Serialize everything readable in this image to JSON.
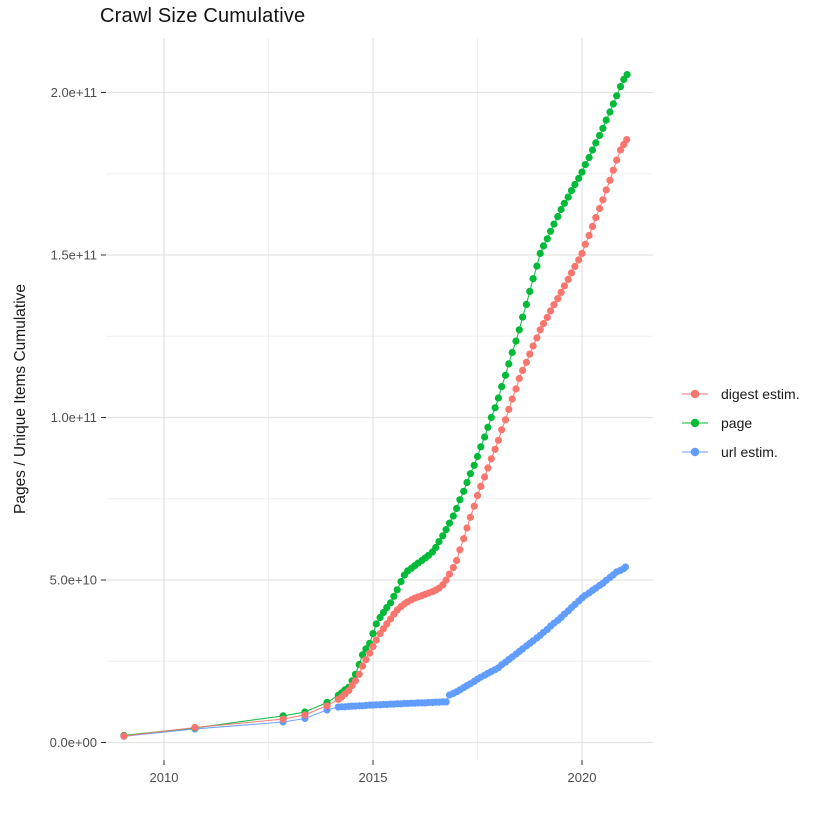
{
  "title": "Crawl Size Cumulative",
  "chart_data": {
    "type": "line",
    "title": "Crawl Size Cumulative",
    "xlabel": "",
    "ylabel": "Pages / Unique Items Cumulative",
    "background": "#FFFFFF",
    "grid": true,
    "legend_position": "right",
    "value_unit": "billions (1e9) of pages / unique items; y tick labels shown in scientific notation",
    "x_range": [
      2008.4,
      2021.7
    ],
    "y_range_billions": [
      -10,
      215
    ],
    "x_axis": {
      "ticks": [
        {
          "label": "2010",
          "value": 2010
        },
        {
          "label": "2015",
          "value": 2015
        },
        {
          "label": "2020",
          "value": 2020
        }
      ],
      "minor_gridlines": [
        2012.5,
        2017.5
      ]
    },
    "y_axis": {
      "ticks": [
        {
          "label": "0.0e+00",
          "value": 0
        },
        {
          "label": "5.0e+10",
          "value": 50
        },
        {
          "label": "1.0e+11",
          "value": 100
        },
        {
          "label": "1.5e+11",
          "value": 150
        },
        {
          "label": "2.0e+11",
          "value": 200
        }
      ],
      "minor_gridlines": [
        25,
        75,
        125,
        175
      ]
    },
    "series": [
      {
        "name": "digest estim.",
        "color": "#F8766D",
        "points": [
          [
            2009.04,
            2.0
          ],
          [
            2010.74,
            4.6
          ],
          [
            2012.85,
            7.2
          ],
          [
            2013.37,
            8.5
          ],
          [
            2013.9,
            11.3
          ],
          [
            2014.17,
            13.3
          ],
          [
            2014.25,
            14.0
          ],
          [
            2014.33,
            15.0
          ],
          [
            2014.42,
            16.0
          ],
          [
            2014.5,
            17.5
          ],
          [
            2014.58,
            19.0
          ],
          [
            2014.67,
            21.0
          ],
          [
            2014.75,
            23.5
          ],
          [
            2014.83,
            25.5
          ],
          [
            2014.92,
            27.5
          ],
          [
            2015.0,
            29.5
          ],
          [
            2015.08,
            31.5
          ],
          [
            2015.17,
            33.5
          ],
          [
            2015.25,
            35.0
          ],
          [
            2015.33,
            36.5
          ],
          [
            2015.42,
            38.0
          ],
          [
            2015.5,
            39.5
          ],
          [
            2015.58,
            40.8
          ],
          [
            2015.67,
            41.8
          ],
          [
            2015.75,
            42.6
          ],
          [
            2015.83,
            43.3
          ],
          [
            2015.92,
            43.9
          ],
          [
            2016.0,
            44.4
          ],
          [
            2016.08,
            44.8
          ],
          [
            2016.17,
            45.2
          ],
          [
            2016.25,
            45.6
          ],
          [
            2016.33,
            46.0
          ],
          [
            2016.42,
            46.4
          ],
          [
            2016.5,
            46.9
          ],
          [
            2016.58,
            47.5
          ],
          [
            2016.67,
            48.5
          ],
          [
            2016.75,
            50.0
          ],
          [
            2016.83,
            51.8
          ],
          [
            2016.92,
            53.8
          ],
          [
            2017.0,
            56.0
          ],
          [
            2017.08,
            59.3
          ],
          [
            2017.17,
            62.7
          ],
          [
            2017.25,
            66.0
          ],
          [
            2017.33,
            69.3
          ],
          [
            2017.42,
            72.7
          ],
          [
            2017.5,
            76.0
          ],
          [
            2017.58,
            78.8
          ],
          [
            2017.67,
            81.7
          ],
          [
            2017.75,
            84.5
          ],
          [
            2017.83,
            87.3
          ],
          [
            2017.92,
            90.2
          ],
          [
            2018.0,
            93.0
          ],
          [
            2018.08,
            96.2
          ],
          [
            2018.17,
            99.3
          ],
          [
            2018.25,
            102.5
          ],
          [
            2018.33,
            105.7
          ],
          [
            2018.42,
            108.8
          ],
          [
            2018.5,
            112.0
          ],
          [
            2018.58,
            114.5
          ],
          [
            2018.67,
            117.0
          ],
          [
            2018.75,
            119.5
          ],
          [
            2018.83,
            122.0
          ],
          [
            2018.92,
            124.5
          ],
          [
            2019.0,
            127.0
          ],
          [
            2019.08,
            128.9
          ],
          [
            2019.17,
            130.8
          ],
          [
            2019.25,
            132.8
          ],
          [
            2019.33,
            134.7
          ],
          [
            2019.42,
            136.6
          ],
          [
            2019.5,
            138.5
          ],
          [
            2019.58,
            140.5
          ],
          [
            2019.67,
            142.5
          ],
          [
            2019.75,
            144.5
          ],
          [
            2019.83,
            146.5
          ],
          [
            2019.92,
            148.5
          ],
          [
            2020.0,
            150.5
          ],
          [
            2020.08,
            153.3
          ],
          [
            2020.17,
            156.0
          ],
          [
            2020.25,
            158.8
          ],
          [
            2020.33,
            161.5
          ],
          [
            2020.42,
            164.3
          ],
          [
            2020.5,
            167.0
          ],
          [
            2020.58,
            170.0
          ],
          [
            2020.67,
            173.0
          ],
          [
            2020.75,
            176.1
          ],
          [
            2020.83,
            179.2
          ],
          [
            2020.92,
            182.3
          ],
          [
            2021.0,
            184.0
          ],
          [
            2021.07,
            185.5
          ]
        ]
      },
      {
        "name": "page",
        "color": "#00BA38",
        "points": [
          [
            2009.04,
            2.2
          ],
          [
            2010.74,
            4.5
          ],
          [
            2012.85,
            8.2
          ],
          [
            2013.37,
            9.4
          ],
          [
            2013.9,
            12.3
          ],
          [
            2014.17,
            14.5
          ],
          [
            2014.25,
            15.3
          ],
          [
            2014.33,
            16.2
          ],
          [
            2014.42,
            17.0
          ],
          [
            2014.5,
            19.0
          ],
          [
            2014.58,
            21.0
          ],
          [
            2014.67,
            24.0
          ],
          [
            2014.75,
            27.0
          ],
          [
            2014.83,
            28.8
          ],
          [
            2014.92,
            30.5
          ],
          [
            2015.0,
            33.5
          ],
          [
            2015.08,
            36.5
          ],
          [
            2015.17,
            38.5
          ],
          [
            2015.25,
            40.0
          ],
          [
            2015.33,
            41.5
          ],
          [
            2015.42,
            43.0
          ],
          [
            2015.5,
            45.0
          ],
          [
            2015.58,
            47.0
          ],
          [
            2015.67,
            49.5
          ],
          [
            2015.75,
            51.5
          ],
          [
            2015.83,
            52.8
          ],
          [
            2015.92,
            53.6
          ],
          [
            2016.0,
            54.4
          ],
          [
            2016.08,
            55.2
          ],
          [
            2016.17,
            56.0
          ],
          [
            2016.25,
            56.8
          ],
          [
            2016.33,
            57.6
          ],
          [
            2016.42,
            58.6
          ],
          [
            2016.5,
            60.0
          ],
          [
            2016.58,
            61.8
          ],
          [
            2016.67,
            63.6
          ],
          [
            2016.75,
            65.5
          ],
          [
            2016.83,
            67.5
          ],
          [
            2016.92,
            69.7
          ],
          [
            2017.0,
            72.0
          ],
          [
            2017.08,
            74.7
          ],
          [
            2017.17,
            77.3
          ],
          [
            2017.25,
            80.0
          ],
          [
            2017.33,
            82.7
          ],
          [
            2017.42,
            85.3
          ],
          [
            2017.5,
            88.0
          ],
          [
            2017.58,
            91.0
          ],
          [
            2017.67,
            94.0
          ],
          [
            2017.75,
            97.0
          ],
          [
            2017.83,
            100.0
          ],
          [
            2017.92,
            103.0
          ],
          [
            2018.0,
            106.0
          ],
          [
            2018.08,
            109.5
          ],
          [
            2018.17,
            113.0
          ],
          [
            2018.25,
            116.5
          ],
          [
            2018.33,
            120.0
          ],
          [
            2018.42,
            123.5
          ],
          [
            2018.5,
            127.0
          ],
          [
            2018.58,
            130.9
          ],
          [
            2018.67,
            134.8
          ],
          [
            2018.75,
            138.8
          ],
          [
            2018.83,
            142.7
          ],
          [
            2018.92,
            146.6
          ],
          [
            2019.0,
            150.5
          ],
          [
            2019.08,
            152.8
          ],
          [
            2019.17,
            155.0
          ],
          [
            2019.25,
            157.3
          ],
          [
            2019.33,
            159.5
          ],
          [
            2019.42,
            161.8
          ],
          [
            2019.5,
            164.0
          ],
          [
            2019.58,
            165.9
          ],
          [
            2019.67,
            167.8
          ],
          [
            2019.75,
            169.8
          ],
          [
            2019.83,
            171.7
          ],
          [
            2019.92,
            173.6
          ],
          [
            2020.0,
            175.5
          ],
          [
            2020.08,
            177.8
          ],
          [
            2020.17,
            180.0
          ],
          [
            2020.25,
            182.3
          ],
          [
            2020.33,
            184.5
          ],
          [
            2020.42,
            186.8
          ],
          [
            2020.5,
            189.0
          ],
          [
            2020.58,
            191.5
          ],
          [
            2020.67,
            194.0
          ],
          [
            2020.75,
            196.5
          ],
          [
            2020.83,
            199.0
          ],
          [
            2020.92,
            201.8
          ],
          [
            2021.0,
            204.0
          ],
          [
            2021.08,
            205.5
          ]
        ]
      },
      {
        "name": "url estim.",
        "color": "#619CFF",
        "points": [
          [
            2009.04,
            1.9
          ],
          [
            2010.74,
            4.2
          ],
          [
            2012.85,
            6.3
          ],
          [
            2013.37,
            7.4
          ],
          [
            2013.9,
            10.0
          ],
          [
            2014.17,
            10.9
          ],
          [
            2014.25,
            11.0
          ],
          [
            2014.33,
            11.0
          ],
          [
            2014.42,
            11.1
          ],
          [
            2014.5,
            11.2
          ],
          [
            2014.58,
            11.2
          ],
          [
            2014.67,
            11.3
          ],
          [
            2014.75,
            11.3
          ],
          [
            2014.83,
            11.4
          ],
          [
            2014.92,
            11.5
          ],
          [
            2015.0,
            11.5
          ],
          [
            2015.08,
            11.6
          ],
          [
            2015.17,
            11.6
          ],
          [
            2015.25,
            11.7
          ],
          [
            2015.33,
            11.7
          ],
          [
            2015.42,
            11.8
          ],
          [
            2015.5,
            11.8
          ],
          [
            2015.58,
            11.9
          ],
          [
            2015.67,
            11.9
          ],
          [
            2015.75,
            12.0
          ],
          [
            2015.83,
            12.0
          ],
          [
            2015.92,
            12.1
          ],
          [
            2016.0,
            12.1
          ],
          [
            2016.08,
            12.2
          ],
          [
            2016.17,
            12.2
          ],
          [
            2016.25,
            12.2
          ],
          [
            2016.33,
            12.3
          ],
          [
            2016.42,
            12.3
          ],
          [
            2016.5,
            12.4
          ],
          [
            2016.58,
            12.4
          ],
          [
            2016.67,
            12.5
          ],
          [
            2016.75,
            12.5
          ],
          [
            2016.83,
            14.6
          ],
          [
            2016.92,
            15.1
          ],
          [
            2017.0,
            15.6
          ],
          [
            2017.08,
            16.2
          ],
          [
            2017.17,
            16.9
          ],
          [
            2017.25,
            17.5
          ],
          [
            2017.33,
            18.1
          ],
          [
            2017.42,
            18.8
          ],
          [
            2017.5,
            19.5
          ],
          [
            2017.58,
            20.1
          ],
          [
            2017.67,
            20.7
          ],
          [
            2017.75,
            21.3
          ],
          [
            2017.83,
            21.8
          ],
          [
            2017.92,
            22.4
          ],
          [
            2018.0,
            23.0
          ],
          [
            2018.08,
            23.9
          ],
          [
            2018.17,
            24.7
          ],
          [
            2018.25,
            25.5
          ],
          [
            2018.33,
            26.3
          ],
          [
            2018.42,
            27.2
          ],
          [
            2018.5,
            28.0
          ],
          [
            2018.58,
            28.8
          ],
          [
            2018.67,
            29.7
          ],
          [
            2018.75,
            30.5
          ],
          [
            2018.83,
            31.3
          ],
          [
            2018.92,
            32.2
          ],
          [
            2019.0,
            33.0
          ],
          [
            2019.08,
            33.9
          ],
          [
            2019.17,
            34.8
          ],
          [
            2019.25,
            35.8
          ],
          [
            2019.33,
            36.7
          ],
          [
            2019.42,
            37.6
          ],
          [
            2019.5,
            38.5
          ],
          [
            2019.58,
            39.5
          ],
          [
            2019.67,
            40.5
          ],
          [
            2019.75,
            41.5
          ],
          [
            2019.83,
            42.5
          ],
          [
            2019.92,
            43.5
          ],
          [
            2020.0,
            44.5
          ],
          [
            2020.08,
            45.3
          ],
          [
            2020.17,
            46.0
          ],
          [
            2020.25,
            46.8
          ],
          [
            2020.33,
            47.5
          ],
          [
            2020.42,
            48.3
          ],
          [
            2020.5,
            49.0
          ],
          [
            2020.58,
            49.9
          ],
          [
            2020.67,
            50.8
          ],
          [
            2020.75,
            51.6
          ],
          [
            2020.83,
            52.5
          ],
          [
            2020.92,
            53.0
          ],
          [
            2021.0,
            53.5
          ],
          [
            2021.04,
            54.0
          ]
        ]
      }
    ]
  }
}
